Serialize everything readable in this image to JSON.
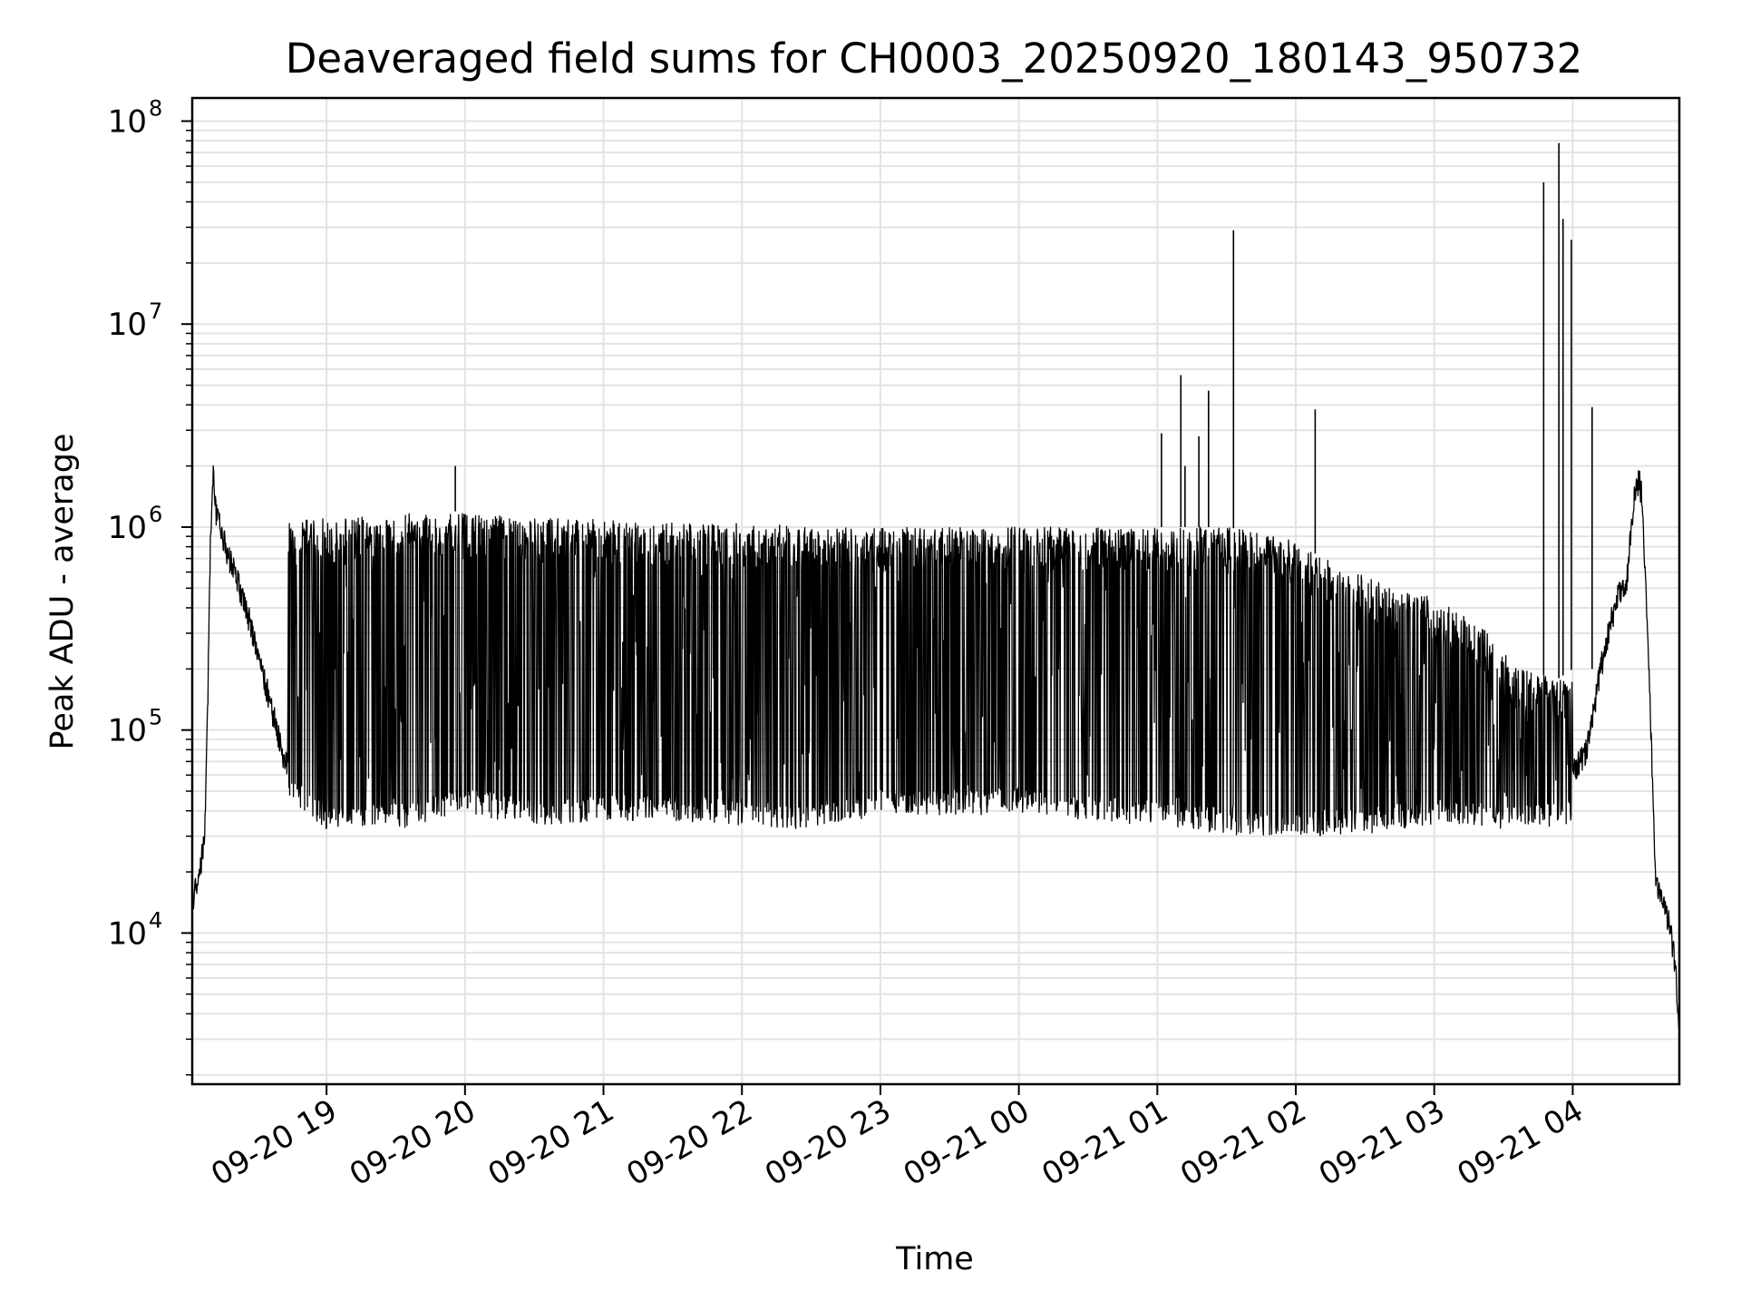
{
  "chart_data": {
    "type": "line",
    "title": "Deaveraged field sums for CH0003_20250920_180143_950732",
    "xlabel": "Time",
    "ylabel": "Peak ADU - average",
    "yscale": "log",
    "ylim": [
      1800,
      130000000
    ],
    "x_unit": "hours since 2025-09-20 18:00",
    "xlim": [
      18.03,
      28.77
    ],
    "grid": true,
    "legend": "none",
    "line_color": "#000000",
    "x_ticks": [
      {
        "value": 19,
        "label": "09-20 19"
      },
      {
        "value": 20,
        "label": "09-20 20"
      },
      {
        "value": 21,
        "label": "09-20 21"
      },
      {
        "value": 22,
        "label": "09-20 22"
      },
      {
        "value": 23,
        "label": "09-20 23"
      },
      {
        "value": 24,
        "label": "09-21 00"
      },
      {
        "value": 25,
        "label": "09-21 01"
      },
      {
        "value": 26,
        "label": "09-21 02"
      },
      {
        "value": 27,
        "label": "09-21 03"
      },
      {
        "value": 28,
        "label": "09-21 04"
      }
    ],
    "y_ticks": [
      {
        "value": 10000,
        "base": "10",
        "exp": "4"
      },
      {
        "value": 100000,
        "base": "10",
        "exp": "5"
      },
      {
        "value": 1000000,
        "base": "10",
        "exp": "6"
      },
      {
        "value": 10000000,
        "base": "10",
        "exp": "7"
      },
      {
        "value": 100000000,
        "base": "10",
        "exp": "8"
      }
    ],
    "series": [
      {
        "name": "Peak ADU - average",
        "baseline_x": [
          18.03,
          18.07,
          18.1,
          18.12,
          18.14,
          18.16,
          18.18,
          18.2,
          18.25,
          18.3,
          18.4,
          18.5,
          18.6,
          18.7,
          18.75,
          18.8,
          18.9,
          19.0,
          19.5,
          20.0,
          21.0,
          22.0,
          23.0,
          24.0,
          25.0,
          26.0,
          27.0,
          27.5,
          27.9,
          28.1,
          28.2,
          28.3,
          28.35,
          28.38,
          28.42,
          28.45,
          28.48,
          28.5,
          28.52,
          28.55,
          28.6,
          28.65,
          28.7,
          28.74,
          28.77
        ],
        "baseline_y": [
          14000,
          18000,
          24000,
          33000,
          110000,
          800000,
          1900000,
          1200000,
          900000,
          700000,
          450000,
          250000,
          130000,
          70000,
          60000,
          52000,
          45000,
          42000,
          45000,
          50000,
          48000,
          50000,
          52000,
          50000,
          48000,
          45000,
          43000,
          45000,
          48000,
          80000,
          200000,
          400000,
          500000,
          480000,
          900000,
          1500000,
          1700000,
          1400000,
          700000,
          200000,
          17000,
          14000,
          11000,
          7000,
          3500
        ],
        "band_start": 18.72,
        "band_end": 28.0,
        "band_upper": [
          [
            18.72,
            1100000
          ],
          [
            19.0,
            1100000
          ],
          [
            19.9,
            1200000
          ],
          [
            20.5,
            1100000
          ],
          [
            21.0,
            1100000
          ],
          [
            21.5,
            1050000
          ],
          [
            22.0,
            1050000
          ],
          [
            22.5,
            1000000
          ],
          [
            23.0,
            1000000
          ],
          [
            23.5,
            1000000
          ],
          [
            24.0,
            1000000
          ],
          [
            24.5,
            1000000
          ],
          [
            25.0,
            1000000
          ],
          [
            25.5,
            1000000
          ],
          [
            25.9,
            900000
          ],
          [
            26.3,
            650000
          ],
          [
            26.7,
            500000
          ],
          [
            27.0,
            450000
          ],
          [
            27.3,
            350000
          ],
          [
            27.6,
            200000
          ],
          [
            27.9,
            180000
          ],
          [
            28.0,
            200000
          ]
        ],
        "band_lower": [
          [
            18.72,
            55000
          ],
          [
            19.0,
            38000
          ],
          [
            19.5,
            38000
          ],
          [
            20.0,
            45000
          ],
          [
            20.5,
            40000
          ],
          [
            21.0,
            42000
          ],
          [
            21.5,
            42000
          ],
          [
            22.0,
            40000
          ],
          [
            22.5,
            38000
          ],
          [
            23.0,
            45000
          ],
          [
            23.5,
            45000
          ],
          [
            24.0,
            45000
          ],
          [
            24.5,
            42000
          ],
          [
            25.0,
            40000
          ],
          [
            25.5,
            36000
          ],
          [
            26.0,
            35000
          ],
          [
            26.5,
            36000
          ],
          [
            27.0,
            40000
          ],
          [
            27.5,
            38000
          ],
          [
            28.0,
            40000
          ]
        ],
        "spikes": [
          {
            "x": 19.93,
            "y": 2000000
          },
          {
            "x": 25.03,
            "y": 2900000
          },
          {
            "x": 25.17,
            "y": 5600000
          },
          {
            "x": 25.2,
            "y": 2000000
          },
          {
            "x": 25.3,
            "y": 2800000
          },
          {
            "x": 25.37,
            "y": 4700000
          },
          {
            "x": 25.55,
            "y": 29000000
          },
          {
            "x": 26.14,
            "y": 3800000
          },
          {
            "x": 27.79,
            "y": 50000000
          },
          {
            "x": 27.9,
            "y": 78000000
          },
          {
            "x": 27.93,
            "y": 33000000
          },
          {
            "x": 27.99,
            "y": 26000000
          },
          {
            "x": 28.14,
            "y": 3900000
          }
        ]
      }
    ]
  }
}
